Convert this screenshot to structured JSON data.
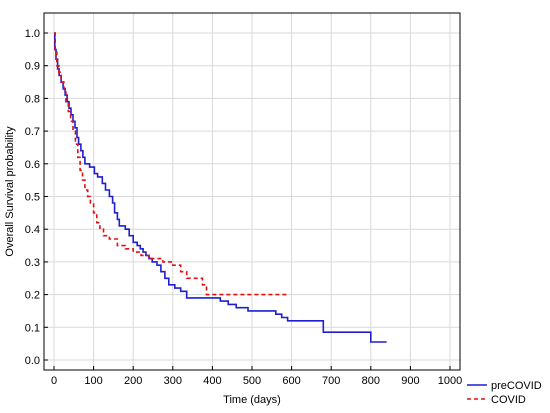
{
  "chart_data": {
    "type": "line",
    "title": "",
    "xlabel": "Time (days)",
    "ylabel": "Overall Survival probability",
    "xlim": [
      0,
      1000
    ],
    "ylim": [
      0,
      1.0
    ],
    "xticks": [
      "0",
      "100",
      "200",
      "300",
      "400",
      "500",
      "600",
      "700",
      "800",
      "900",
      "1000"
    ],
    "yticks": [
      "0.0",
      "0.1",
      "0.2",
      "0.3",
      "0.4",
      "0.5",
      "0.6",
      "0.7",
      "0.8",
      "0.9",
      "1.0"
    ],
    "grid": true,
    "legend_position": "bottom-right",
    "series": [
      {
        "name": "preCOVID",
        "color": "#1f1fd0",
        "style": "solid",
        "step": true,
        "points": [
          [
            0,
            1.0
          ],
          [
            2,
            0.95
          ],
          [
            5,
            0.92
          ],
          [
            9,
            0.89
          ],
          [
            13,
            0.87
          ],
          [
            18,
            0.85
          ],
          [
            23,
            0.83
          ],
          [
            28,
            0.81
          ],
          [
            33,
            0.79
          ],
          [
            38,
            0.77
          ],
          [
            43,
            0.75
          ],
          [
            48,
            0.73
          ],
          [
            53,
            0.71
          ],
          [
            58,
            0.68
          ],
          [
            62,
            0.66
          ],
          [
            68,
            0.64
          ],
          [
            73,
            0.62
          ],
          [
            78,
            0.6
          ],
          [
            90,
            0.59
          ],
          [
            102,
            0.57
          ],
          [
            110,
            0.56
          ],
          [
            122,
            0.54
          ],
          [
            130,
            0.52
          ],
          [
            140,
            0.5
          ],
          [
            148,
            0.48
          ],
          [
            153,
            0.45
          ],
          [
            160,
            0.43
          ],
          [
            165,
            0.41
          ],
          [
            180,
            0.4
          ],
          [
            190,
            0.38
          ],
          [
            200,
            0.36
          ],
          [
            210,
            0.35
          ],
          [
            218,
            0.34
          ],
          [
            225,
            0.33
          ],
          [
            232,
            0.32
          ],
          [
            240,
            0.31
          ],
          [
            248,
            0.3
          ],
          [
            260,
            0.29
          ],
          [
            270,
            0.27
          ],
          [
            280,
            0.25
          ],
          [
            290,
            0.23
          ],
          [
            305,
            0.22
          ],
          [
            320,
            0.21
          ],
          [
            335,
            0.19
          ],
          [
            400,
            0.19
          ],
          [
            420,
            0.18
          ],
          [
            440,
            0.17
          ],
          [
            460,
            0.16
          ],
          [
            490,
            0.15
          ],
          [
            560,
            0.14
          ],
          [
            575,
            0.13
          ],
          [
            590,
            0.12
          ],
          [
            680,
            0.085
          ],
          [
            800,
            0.055
          ],
          [
            840,
            0.055
          ]
        ]
      },
      {
        "name": "COVID",
        "color": "#e01010",
        "style": "dashed",
        "step": true,
        "points": [
          [
            0,
            1.0
          ],
          [
            3,
            0.95
          ],
          [
            7,
            0.9
          ],
          [
            12,
            0.88
          ],
          [
            18,
            0.85
          ],
          [
            25,
            0.82
          ],
          [
            30,
            0.79
          ],
          [
            36,
            0.76
          ],
          [
            42,
            0.73
          ],
          [
            48,
            0.7
          ],
          [
            54,
            0.66
          ],
          [
            60,
            0.62
          ],
          [
            66,
            0.58
          ],
          [
            72,
            0.55
          ],
          [
            78,
            0.52
          ],
          [
            85,
            0.5
          ],
          [
            92,
            0.48
          ],
          [
            100,
            0.45
          ],
          [
            108,
            0.42
          ],
          [
            116,
            0.4
          ],
          [
            125,
            0.38
          ],
          [
            140,
            0.37
          ],
          [
            160,
            0.35
          ],
          [
            180,
            0.34
          ],
          [
            200,
            0.33
          ],
          [
            220,
            0.32
          ],
          [
            240,
            0.31
          ],
          [
            275,
            0.3
          ],
          [
            300,
            0.29
          ],
          [
            320,
            0.27
          ],
          [
            335,
            0.25
          ],
          [
            375,
            0.23
          ],
          [
            385,
            0.2
          ],
          [
            590,
            0.2
          ]
        ]
      }
    ]
  }
}
